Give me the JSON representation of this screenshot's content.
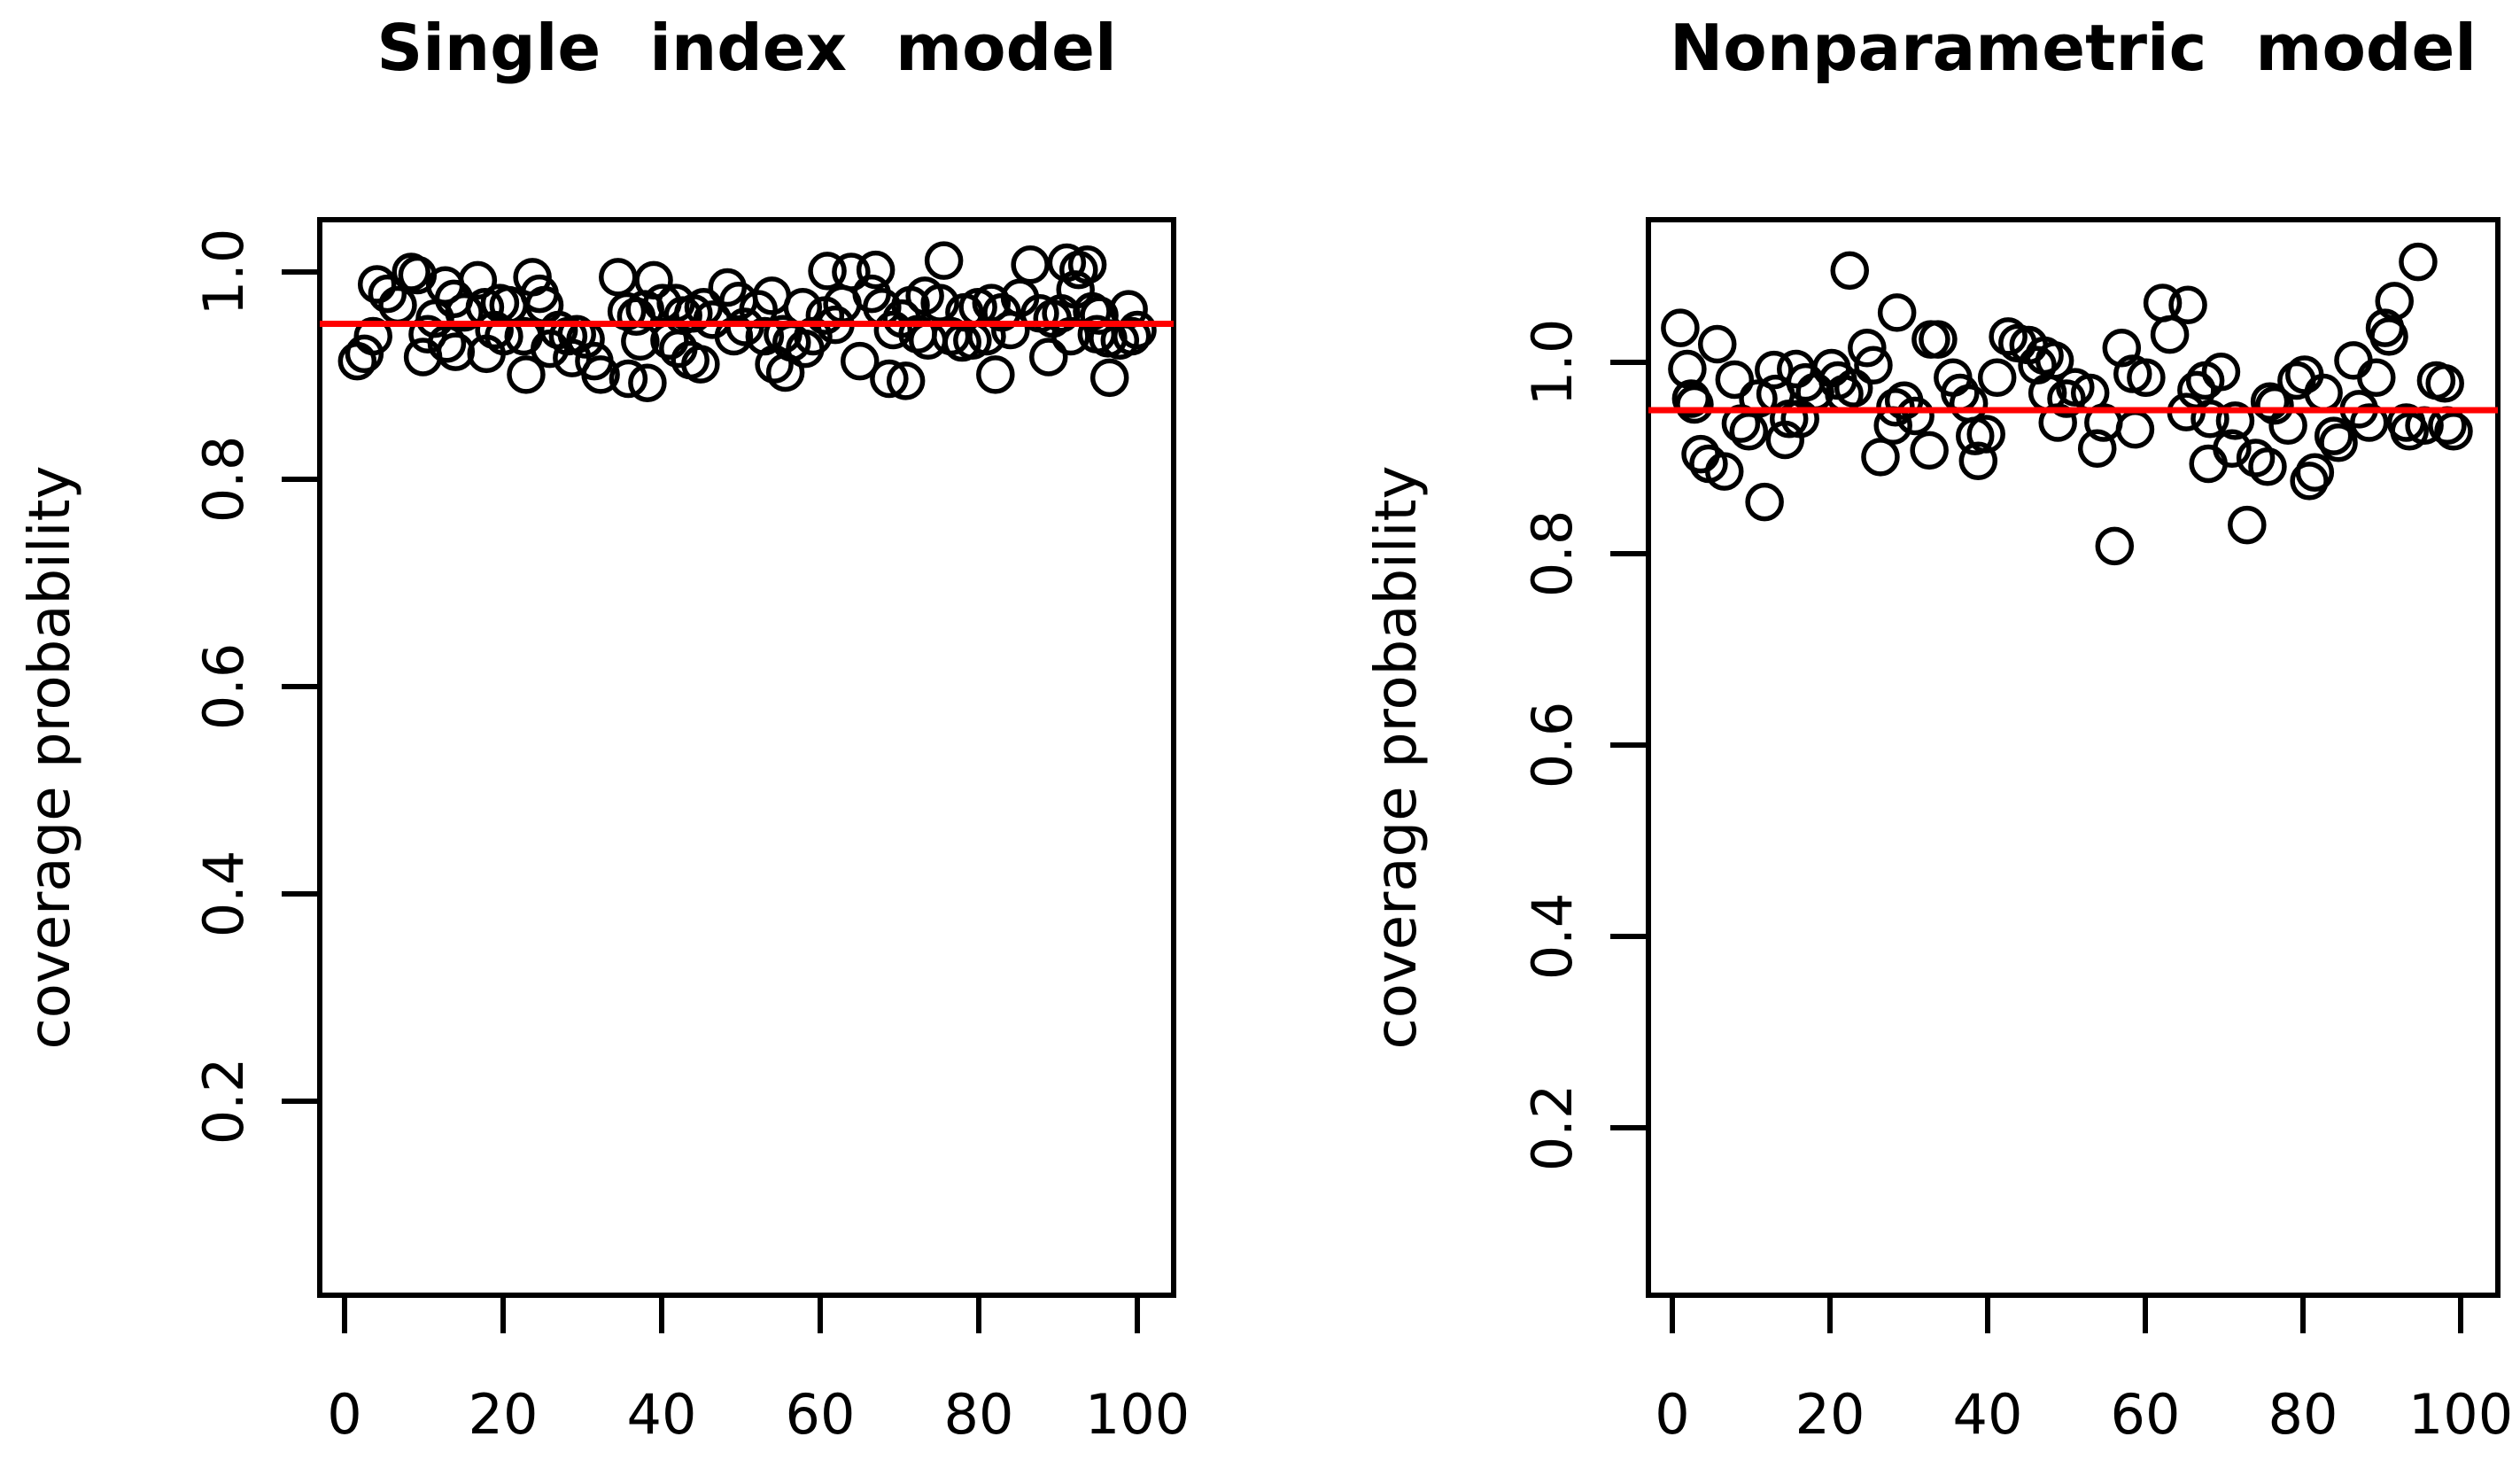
{
  "figure": {
    "background": "#ffffff",
    "axis_color": "#000000",
    "point_color": "#000000",
    "reference_color": "#ff0000"
  },
  "chart_data": [
    {
      "type": "scatter",
      "title": "Single index model",
      "xlabel": "",
      "ylabel": "coverage probability",
      "marker": "open-circle",
      "grid": false,
      "legend": null,
      "x_ticks": [
        0,
        20,
        40,
        60,
        80,
        100
      ],
      "y_ticks": [
        0.2,
        0.4,
        0.6,
        0.8,
        1.0
      ],
      "xlim": [
        -3,
        105
      ],
      "ylim": [
        0.013,
        1.05
      ],
      "reference_line": {
        "y": 0.95,
        "color": "#ff0000"
      },
      "points": [
        [
          1.6,
          0.914
        ],
        [
          2.5,
          0.921
        ],
        [
          3.6,
          0.938
        ],
        [
          4.1,
          0.988
        ],
        [
          5.4,
          0.979
        ],
        [
          6.7,
          0.968
        ],
        [
          8.4,
          1.0
        ],
        [
          9.2,
          0.997
        ],
        [
          9.9,
          0.918
        ],
        [
          10.5,
          0.94
        ],
        [
          11.4,
          0.955
        ],
        [
          12.7,
          0.987
        ],
        [
          12.9,
          0.931
        ],
        [
          13.8,
          0.974
        ],
        [
          14.0,
          0.923
        ],
        [
          15.1,
          0.961
        ],
        [
          16.8,
          0.992
        ],
        [
          17.7,
          0.966
        ],
        [
          17.9,
          0.921
        ],
        [
          18.9,
          0.944
        ],
        [
          19.6,
          0.97
        ],
        [
          20.1,
          0.938
        ],
        [
          20.7,
          0.968
        ],
        [
          22.6,
          0.938
        ],
        [
          22.9,
          0.901
        ],
        [
          23.7,
          0.995
        ],
        [
          24.6,
          0.979
        ],
        [
          25.2,
          0.968
        ],
        [
          25.9,
          0.926
        ],
        [
          27.0,
          0.944
        ],
        [
          28.2,
          0.938
        ],
        [
          28.7,
          0.917
        ],
        [
          29.3,
          0.94
        ],
        [
          30.4,
          0.935
        ],
        [
          31.5,
          0.914
        ],
        [
          32.3,
          0.901
        ],
        [
          34.5,
          0.995
        ],
        [
          35.6,
          0.962
        ],
        [
          35.8,
          0.897
        ],
        [
          36.8,
          0.957
        ],
        [
          37.3,
          0.933
        ],
        [
          37.9,
          0.964
        ],
        [
          38.2,
          0.893
        ],
        [
          39.0,
          0.992
        ],
        [
          40.1,
          0.97
        ],
        [
          41.0,
          0.934
        ],
        [
          41.8,
          0.97
        ],
        [
          42.1,
          0.926
        ],
        [
          42.7,
          0.958
        ],
        [
          43.6,
          0.915
        ],
        [
          44.0,
          0.96
        ],
        [
          44.9,
          0.911
        ],
        [
          45.3,
          0.966
        ],
        [
          46.4,
          0.954
        ],
        [
          48.3,
          0.985
        ],
        [
          49.1,
          0.938
        ],
        [
          49.7,
          0.972
        ],
        [
          50.5,
          0.947
        ],
        [
          52.2,
          0.964
        ],
        [
          53.0,
          0.938
        ],
        [
          53.9,
          0.977
        ],
        [
          54.2,
          0.911
        ],
        [
          55.3,
          0.94
        ],
        [
          55.6,
          0.903
        ],
        [
          56.4,
          0.932
        ],
        [
          57.8,
          0.966
        ],
        [
          58.1,
          0.926
        ],
        [
          59.1,
          0.938
        ],
        [
          60.6,
          0.958
        ],
        [
          60.9,
          1.001
        ],
        [
          61.9,
          0.949
        ],
        [
          62.8,
          0.969
        ],
        [
          63.9,
          1.0
        ],
        [
          65.0,
          0.914
        ],
        [
          66.5,
          0.979
        ],
        [
          67.0,
          1.002
        ],
        [
          67.8,
          0.966
        ],
        [
          68.7,
          0.897
        ],
        [
          69.2,
          0.944
        ],
        [
          70.3,
          0.955
        ],
        [
          70.8,
          0.895
        ],
        [
          71.4,
          0.968
        ],
        [
          72.3,
          0.94
        ],
        [
          73.2,
          0.977
        ],
        [
          73.6,
          0.934
        ],
        [
          75.1,
          0.97
        ],
        [
          75.6,
          1.011
        ],
        [
          76.5,
          0.938
        ],
        [
          77.9,
          0.932
        ],
        [
          78.2,
          0.961
        ],
        [
          79.2,
          0.934
        ],
        [
          79.9,
          0.966
        ],
        [
          81.0,
          0.938
        ],
        [
          81.6,
          0.97
        ],
        [
          82.1,
          0.901
        ],
        [
          82.9,
          0.961
        ],
        [
          84.0,
          0.944
        ],
        [
          85.2,
          0.975
        ],
        [
          86.5,
          1.007
        ],
        [
          87.7,
          0.96
        ],
        [
          88.8,
          0.918
        ],
        [
          89.3,
          0.955
        ],
        [
          90.4,
          0.96
        ],
        [
          91.1,
          1.009
        ],
        [
          91.6,
          0.938
        ],
        [
          92.2,
          0.983
        ],
        [
          92.6,
          1.002
        ],
        [
          93.7,
          1.007
        ],
        [
          94.3,
          0.962
        ],
        [
          94.9,
          0.94
        ],
        [
          95.2,
          0.958
        ],
        [
          96.3,
          0.936
        ],
        [
          96.5,
          0.898
        ],
        [
          97.8,
          0.934
        ],
        [
          98.9,
          0.964
        ],
        [
          99.3,
          0.938
        ],
        [
          100,
          0.944
        ]
      ]
    },
    {
      "type": "scatter",
      "title": "Nonparametric  model",
      "xlabel": "",
      "ylabel": "coverage probability",
      "marker": "open-circle",
      "grid": false,
      "legend": null,
      "x_ticks": [
        0,
        20,
        40,
        60,
        80,
        100
      ],
      "y_ticks": [
        0.2,
        0.4,
        0.6,
        0.8,
        1.0
      ],
      "xlim": [
        -3,
        105
      ],
      "ylim": [
        0.025,
        1.149
      ],
      "reference_line": {
        "y": 0.95,
        "color": "#ff0000"
      },
      "points": [
        [
          1.0,
          1.036
        ],
        [
          1.9,
          0.993
        ],
        [
          2.4,
          0.962
        ],
        [
          2.8,
          0.956
        ],
        [
          3.6,
          0.904
        ],
        [
          4.6,
          0.894
        ],
        [
          5.7,
          1.019
        ],
        [
          6.6,
          0.886
        ],
        [
          7.9,
          0.982
        ],
        [
          8.7,
          0.936
        ],
        [
          9.7,
          0.928
        ],
        [
          10.9,
          0.962
        ],
        [
          11.7,
          0.854
        ],
        [
          12.9,
          0.992
        ],
        [
          13.1,
          0.967
        ],
        [
          14.3,
          0.919
        ],
        [
          14.8,
          0.941
        ],
        [
          15.7,
          0.993
        ],
        [
          16.2,
          0.941
        ],
        [
          16.9,
          0.979
        ],
        [
          18.1,
          0.969
        ],
        [
          20.2,
          0.994
        ],
        [
          21.0,
          0.981
        ],
        [
          21.8,
          0.967
        ],
        [
          22.5,
          1.096
        ],
        [
          23.0,
          0.973
        ],
        [
          24.7,
          1.015
        ],
        [
          25.5,
          0.997
        ],
        [
          26.4,
          0.901
        ],
        [
          28.0,
          0.934
        ],
        [
          28.3,
          0.953
        ],
        [
          28.5,
          1.052
        ],
        [
          29.4,
          0.96
        ],
        [
          30.8,
          0.944
        ],
        [
          32.6,
          0.908
        ],
        [
          32.8,
          1.024
        ],
        [
          33.7,
          1.024
        ],
        [
          35.6,
          0.984
        ],
        [
          36.5,
          0.968
        ],
        [
          37.6,
          0.957
        ],
        [
          38.4,
          0.923
        ],
        [
          38.8,
          0.897
        ],
        [
          39.8,
          0.925
        ],
        [
          41.2,
          0.984
        ],
        [
          42.6,
          1.027
        ],
        [
          43.8,
          1.02
        ],
        [
          45.2,
          1.018
        ],
        [
          46.3,
          0.997
        ],
        [
          47.2,
          1.007
        ],
        [
          47.6,
          0.968
        ],
        [
          48.5,
          1.002
        ],
        [
          48.9,
          0.937
        ],
        [
          50.0,
          0.962
        ],
        [
          51.1,
          0.974
        ],
        [
          53.0,
          0.968
        ],
        [
          53.9,
          0.91
        ],
        [
          54.7,
          0.937
        ],
        [
          56.1,
          0.808
        ],
        [
          57.0,
          1.015
        ],
        [
          58.4,
          0.988
        ],
        [
          58.7,
          0.93
        ],
        [
          60.1,
          0.984
        ],
        [
          62.2,
          1.062
        ],
        [
          63.1,
          1.029
        ],
        [
          65.2,
          0.948
        ],
        [
          65.4,
          1.06
        ],
        [
          66.5,
          0.971
        ],
        [
          67.6,
          0.981
        ],
        [
          68.0,
          0.894
        ],
        [
          68.2,
          0.941
        ],
        [
          69.6,
          0.99
        ],
        [
          71.0,
          0.91
        ],
        [
          71.4,
          0.939
        ],
        [
          72.9,
          0.83
        ],
        [
          74.0,
          0.9
        ],
        [
          75.5,
          0.891
        ],
        [
          75.8,
          0.959
        ],
        [
          76.4,
          0.955
        ],
        [
          78.1,
          0.934
        ],
        [
          79.2,
          0.981
        ],
        [
          80.2,
          0.987
        ],
        [
          80.8,
          0.876
        ],
        [
          81.5,
          0.885
        ],
        [
          82.6,
          0.968
        ],
        [
          83.9,
          0.923
        ],
        [
          84.5,
          0.916
        ],
        [
          86.4,
          1.002
        ],
        [
          87.1,
          0.951
        ],
        [
          88.4,
          0.937
        ],
        [
          89.3,
          0.984
        ],
        [
          90.4,
          1.036
        ],
        [
          90.9,
          1.027
        ],
        [
          91.6,
          1.064
        ],
        [
          93.1,
          0.937
        ],
        [
          93.5,
          0.928
        ],
        [
          94.6,
          1.105
        ],
        [
          95.4,
          0.934
        ],
        [
          96.9,
          0.981
        ],
        [
          98.0,
          0.978
        ],
        [
          98.3,
          0.934
        ],
        [
          99.1,
          0.928
        ]
      ]
    }
  ]
}
